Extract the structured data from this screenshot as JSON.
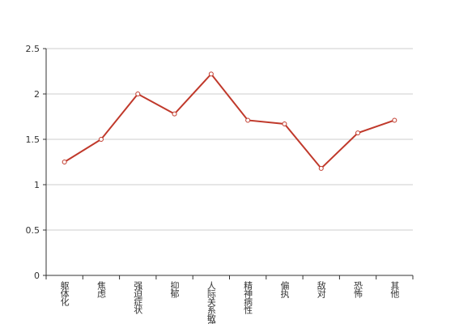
{
  "chart_data": {
    "type": "line",
    "categories": [
      "躯体化",
      "焦虑",
      "强迫症状",
      "抑郁",
      "人际关系敏感",
      "精神病性",
      "偏执",
      "敌对",
      "恐怖",
      "其他"
    ],
    "values": [
      1.25,
      1.5,
      2.0,
      1.78,
      2.22,
      1.71,
      1.67,
      1.18,
      1.57,
      1.71
    ],
    "color": "#c0392b",
    "ylim": [
      0,
      2.5
    ],
    "yticks": [
      0,
      0.5,
      1,
      1.5,
      2,
      2.5
    ],
    "grid": true
  }
}
